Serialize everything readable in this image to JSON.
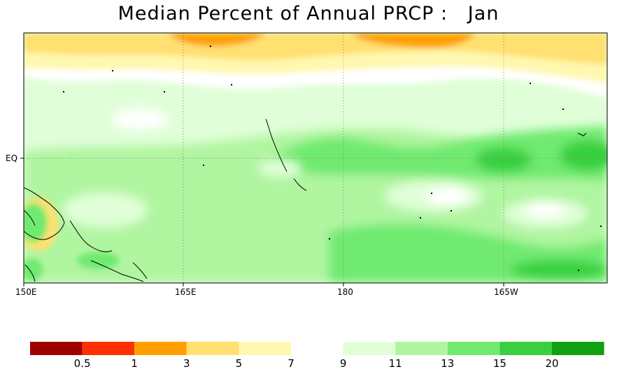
{
  "title": "Median Percent of Annual PRCP :   Jan",
  "x_tick_labels": [
    "150E",
    "165E",
    "180",
    "165W"
  ],
  "y_tick_labels": [
    "EQ"
  ],
  "colorbar": {
    "bins": [
      {
        "color": "#a00000"
      },
      {
        "color": "#ff3000"
      },
      {
        "color": "#ffa000"
      },
      {
        "color": "#ffe070"
      },
      {
        "color": "#fff8b0"
      },
      {
        "color": "#ffffff"
      },
      {
        "color": "#e0ffd8"
      },
      {
        "color": "#b0f5a0"
      },
      {
        "color": "#70ea70"
      },
      {
        "color": "#38d040"
      },
      {
        "color": "#10a010"
      }
    ],
    "labels": [
      "0.5",
      "1",
      "3",
      "5",
      "7",
      "9",
      "11",
      "13",
      "15",
      "20"
    ]
  }
}
